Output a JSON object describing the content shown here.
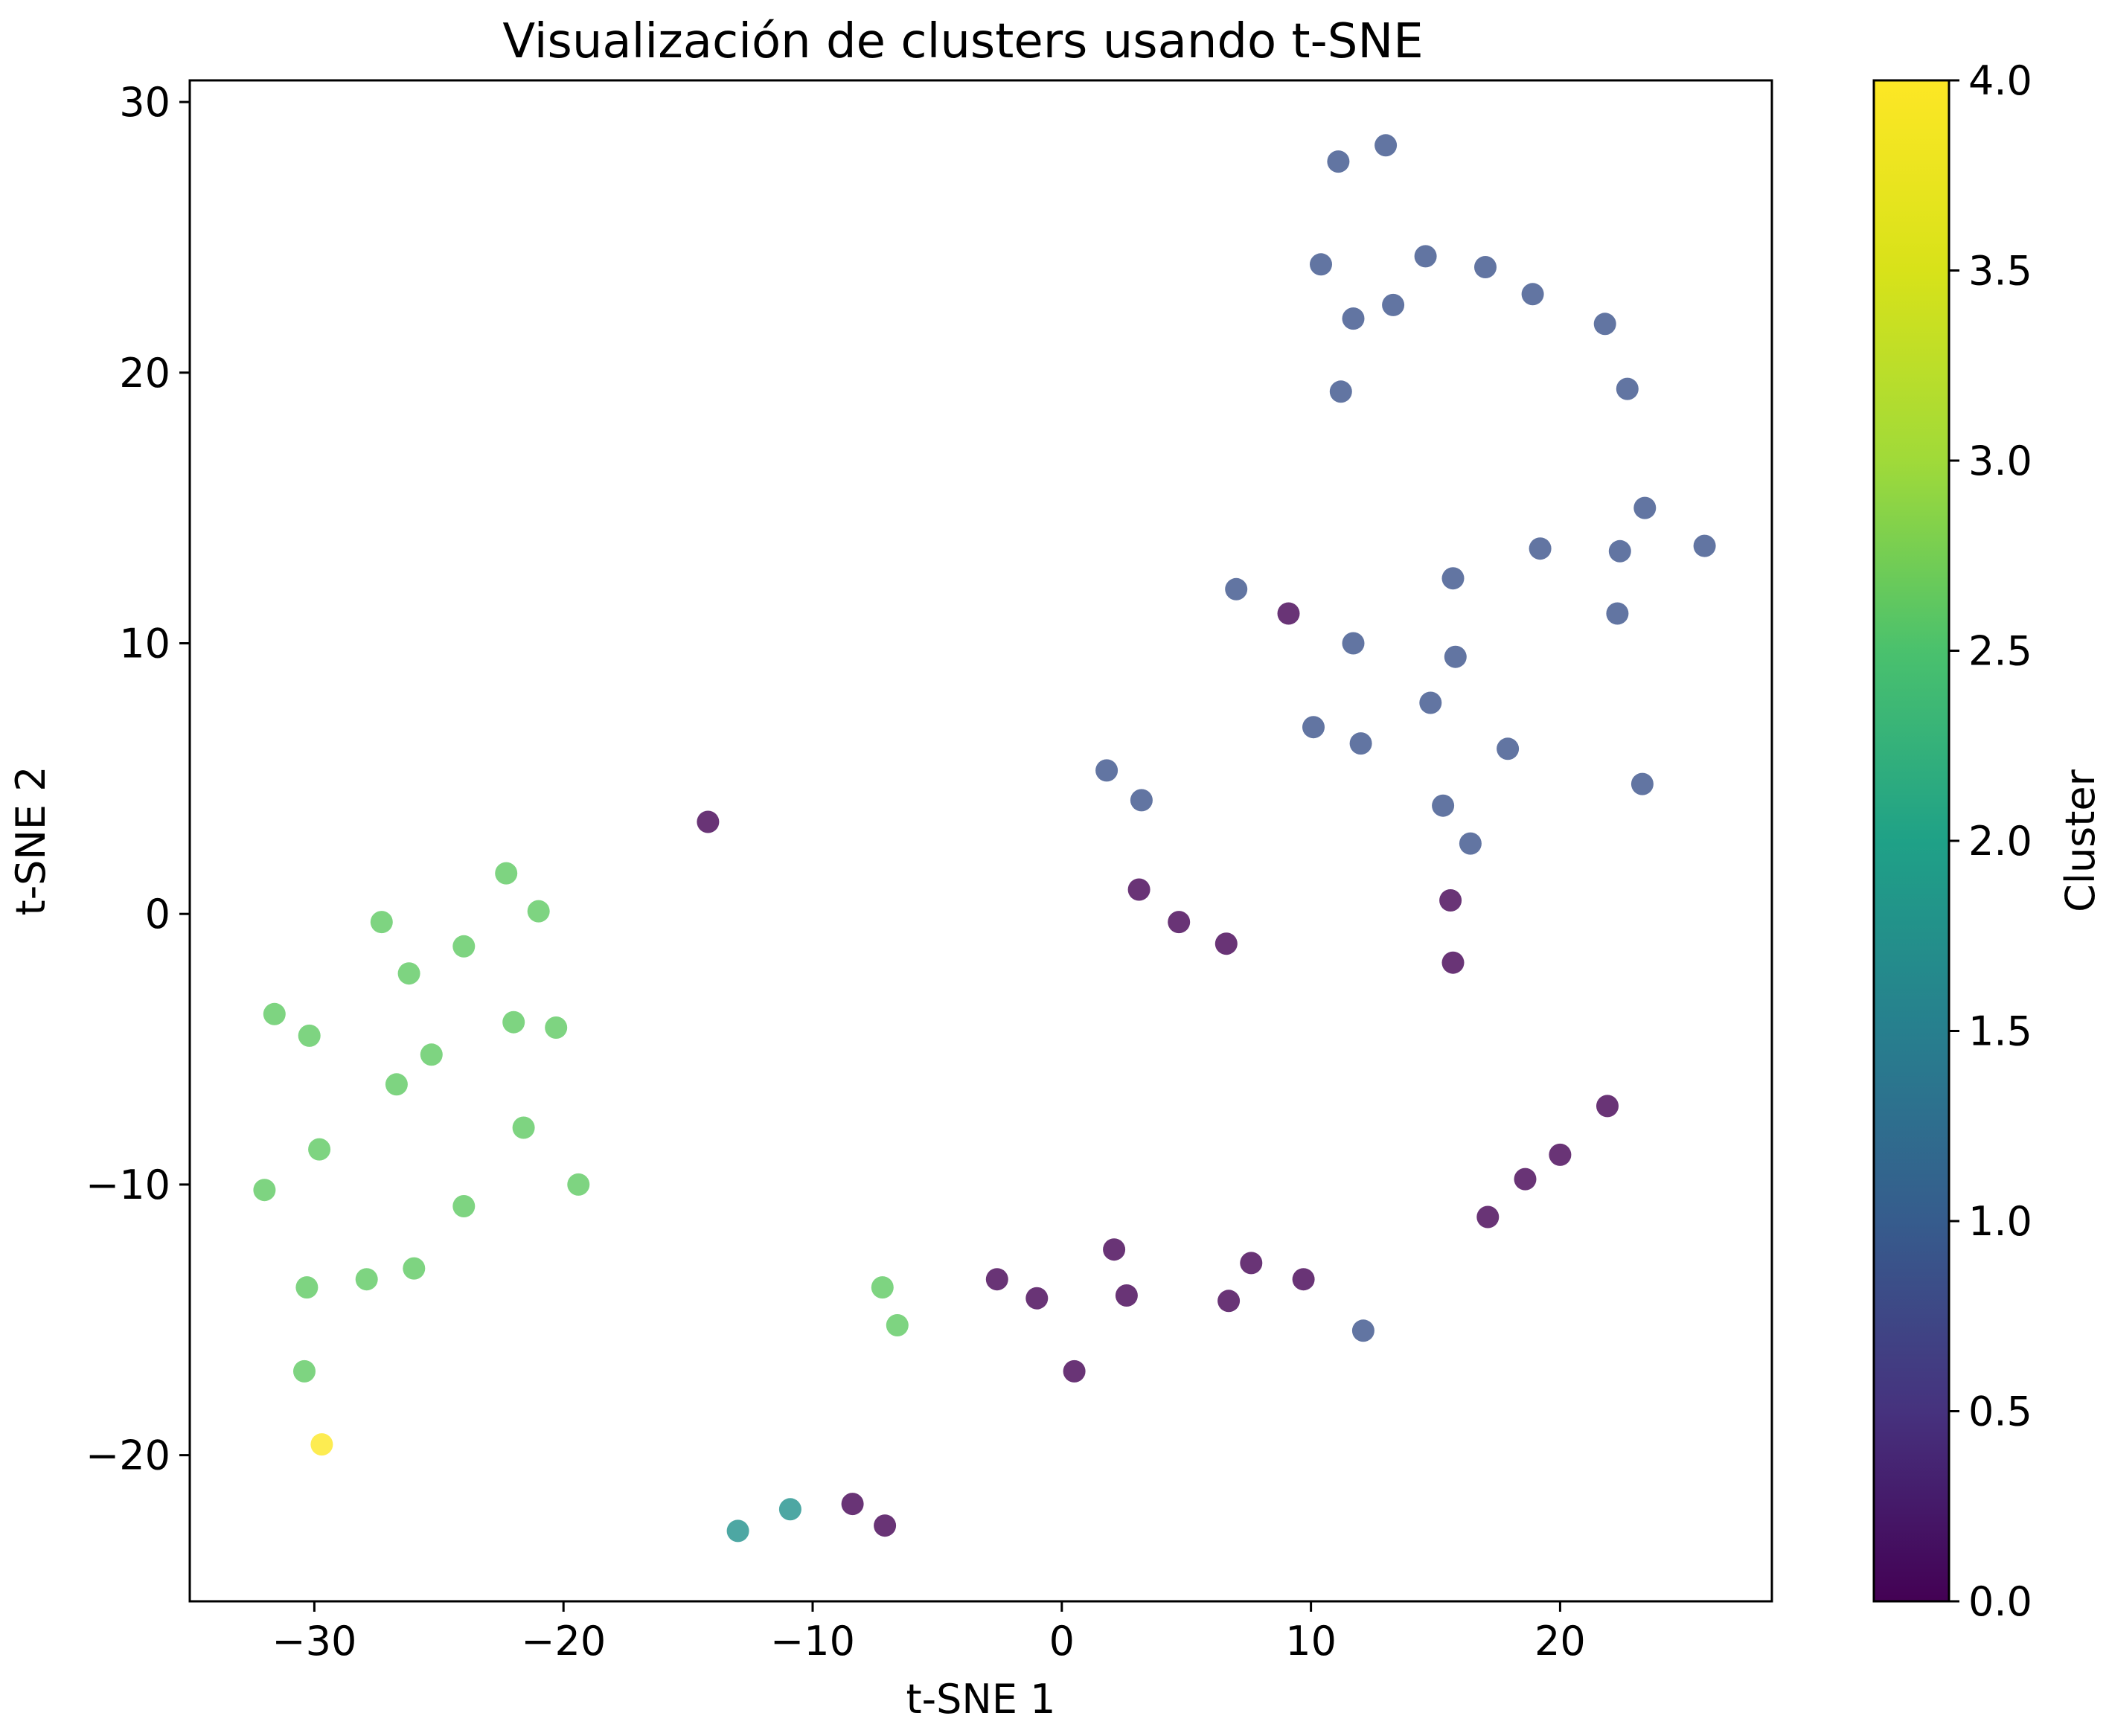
{
  "chart_data": {
    "type": "scatter",
    "title": "Visualización de clusters usando t-SNE",
    "xlabel": "t-SNE 1",
    "ylabel": "t-SNE 2",
    "xlim": [
      -35,
      28.5
    ],
    "ylim": [
      -25.4,
      30.8
    ],
    "xticks": [
      -30,
      -20,
      -10,
      0,
      10,
      20
    ],
    "yticks": [
      -20,
      -10,
      0,
      10,
      20,
      30
    ],
    "grid": false,
    "colormap": "viridis",
    "colorbar": {
      "label": "Cluster",
      "range": [
        0,
        4
      ],
      "ticks": [
        "0.0",
        "0.5",
        "1.0",
        "1.5",
        "2.0",
        "2.5",
        "3.0",
        "3.5",
        "4.0"
      ]
    },
    "cluster_colors": [
      "#440154",
      "#3b528b",
      "#21918c",
      "#5ec962",
      "#fde725"
    ],
    "marker_alpha": 0.8,
    "points": [
      {
        "x": 11.1,
        "y": 27.8,
        "c": 1
      },
      {
        "x": 13.0,
        "y": 28.4,
        "c": 1
      },
      {
        "x": 10.4,
        "y": 24.0,
        "c": 1
      },
      {
        "x": 14.6,
        "y": 24.3,
        "c": 1
      },
      {
        "x": 17.0,
        "y": 23.9,
        "c": 1
      },
      {
        "x": 18.9,
        "y": 22.9,
        "c": 1
      },
      {
        "x": 11.7,
        "y": 22.0,
        "c": 1
      },
      {
        "x": 13.3,
        "y": 22.5,
        "c": 1
      },
      {
        "x": 21.8,
        "y": 21.8,
        "c": 1
      },
      {
        "x": 11.2,
        "y": 19.3,
        "c": 1
      },
      {
        "x": 22.7,
        "y": 19.4,
        "c": 1
      },
      {
        "x": 23.4,
        "y": 15.0,
        "c": 1
      },
      {
        "x": 19.2,
        "y": 13.5,
        "c": 1
      },
      {
        "x": 22.4,
        "y": 13.4,
        "c": 1
      },
      {
        "x": 25.8,
        "y": 13.6,
        "c": 1
      },
      {
        "x": 15.7,
        "y": 12.4,
        "c": 1
      },
      {
        "x": 7.0,
        "y": 12.0,
        "c": 1
      },
      {
        "x": 22.3,
        "y": 11.1,
        "c": 1
      },
      {
        "x": 11.7,
        "y": 10.0,
        "c": 1
      },
      {
        "x": 15.8,
        "y": 9.5,
        "c": 1
      },
      {
        "x": 14.8,
        "y": 7.8,
        "c": 1
      },
      {
        "x": 10.1,
        "y": 6.9,
        "c": 1
      },
      {
        "x": 12.0,
        "y": 6.3,
        "c": 1
      },
      {
        "x": 17.9,
        "y": 6.1,
        "c": 1
      },
      {
        "x": 1.8,
        "y": 5.3,
        "c": 1
      },
      {
        "x": 23.3,
        "y": 4.8,
        "c": 1
      },
      {
        "x": 3.2,
        "y": 4.2,
        "c": 1
      },
      {
        "x": 15.3,
        "y": 4.0,
        "c": 1
      },
      {
        "x": 16.4,
        "y": 2.6,
        "c": 1
      },
      {
        "x": 12.1,
        "y": -15.4,
        "c": 1
      },
      {
        "x": 9.1,
        "y": 11.1,
        "c": 0
      },
      {
        "x": -14.2,
        "y": 3.4,
        "c": 0
      },
      {
        "x": 3.1,
        "y": 0.9,
        "c": 0
      },
      {
        "x": 15.6,
        "y": 0.5,
        "c": 0
      },
      {
        "x": 4.7,
        "y": -0.3,
        "c": 0
      },
      {
        "x": 6.6,
        "y": -1.1,
        "c": 0
      },
      {
        "x": 15.7,
        "y": -1.8,
        "c": 0
      },
      {
        "x": 21.9,
        "y": -7.1,
        "c": 0
      },
      {
        "x": 20.0,
        "y": -8.9,
        "c": 0
      },
      {
        "x": 18.6,
        "y": -9.8,
        "c": 0
      },
      {
        "x": 17.1,
        "y": -11.2,
        "c": 0
      },
      {
        "x": 2.1,
        "y": -12.4,
        "c": 0
      },
      {
        "x": 7.6,
        "y": -12.9,
        "c": 0
      },
      {
        "x": -2.6,
        "y": -13.5,
        "c": 0
      },
      {
        "x": 9.7,
        "y": -13.5,
        "c": 0
      },
      {
        "x": 2.6,
        "y": -14.1,
        "c": 0
      },
      {
        "x": -1.0,
        "y": -14.2,
        "c": 0
      },
      {
        "x": 6.7,
        "y": -14.3,
        "c": 0
      },
      {
        "x": 0.5,
        "y": -16.9,
        "c": 0
      },
      {
        "x": -8.4,
        "y": -21.8,
        "c": 0
      },
      {
        "x": -7.1,
        "y": -22.6,
        "c": 0
      },
      {
        "x": -10.9,
        "y": -22.0,
        "c": 2
      },
      {
        "x": -13.0,
        "y": -22.8,
        "c": 2
      },
      {
        "x": -22.3,
        "y": 1.5,
        "c": 3
      },
      {
        "x": -21.0,
        "y": 0.1,
        "c": 3
      },
      {
        "x": -27.3,
        "y": -0.3,
        "c": 3
      },
      {
        "x": -24.0,
        "y": -1.2,
        "c": 3
      },
      {
        "x": -26.2,
        "y": -2.2,
        "c": 3
      },
      {
        "x": -31.6,
        "y": -3.7,
        "c": 3
      },
      {
        "x": -22.0,
        "y": -4.0,
        "c": 3
      },
      {
        "x": -20.3,
        "y": -4.2,
        "c": 3
      },
      {
        "x": -30.2,
        "y": -4.5,
        "c": 3
      },
      {
        "x": -25.3,
        "y": -5.2,
        "c": 3
      },
      {
        "x": -26.7,
        "y": -6.3,
        "c": 3
      },
      {
        "x": -21.6,
        "y": -7.9,
        "c": 3
      },
      {
        "x": -29.8,
        "y": -8.7,
        "c": 3
      },
      {
        "x": -19.4,
        "y": -10.0,
        "c": 3
      },
      {
        "x": -32.0,
        "y": -10.2,
        "c": 3
      },
      {
        "x": -24.0,
        "y": -10.8,
        "c": 3
      },
      {
        "x": -26.0,
        "y": -13.1,
        "c": 3
      },
      {
        "x": -27.9,
        "y": -13.5,
        "c": 3
      },
      {
        "x": -30.3,
        "y": -13.8,
        "c": 3
      },
      {
        "x": -7.2,
        "y": -13.8,
        "c": 3
      },
      {
        "x": -6.6,
        "y": -15.2,
        "c": 3
      },
      {
        "x": -30.4,
        "y": -16.9,
        "c": 3
      },
      {
        "x": -29.7,
        "y": -19.6,
        "c": 4
      }
    ]
  }
}
